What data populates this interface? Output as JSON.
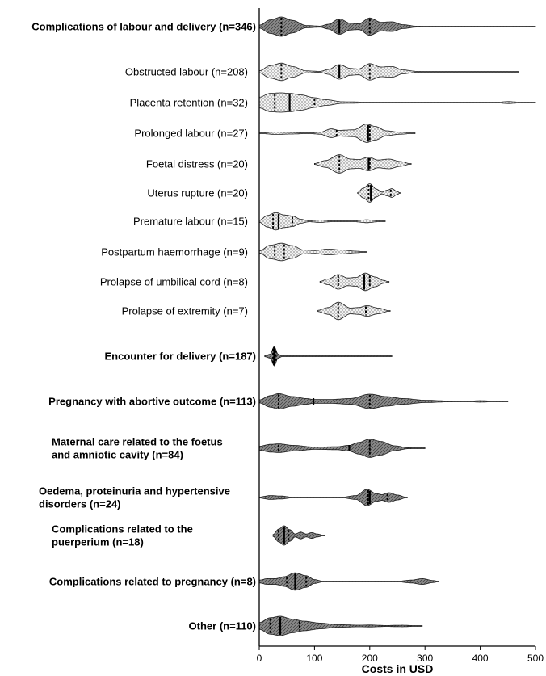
{
  "chart_data": {
    "type": "violin",
    "title": "",
    "xlabel": "Costs in USD",
    "ylabel": "",
    "xlim": [
      0,
      500
    ],
    "xticks": [
      0,
      100,
      200,
      300,
      400,
      500
    ],
    "grid": false,
    "legend": "none",
    "colors": {
      "group": "#8a8a8a",
      "subgroup": "#e6e6e6",
      "outline": "#1a1a1a",
      "marker": "#000000"
    },
    "categories": [
      {
        "label": "Complications of labour and delivery (n=346)",
        "bold": true,
        "kind": "group",
        "lines": [
          40,
          145,
          200
        ],
        "range": [
          0,
          500
        ],
        "profile": [
          [
            0,
            0.15
          ],
          [
            20,
            0.7
          ],
          [
            40,
            1.0
          ],
          [
            60,
            0.65
          ],
          [
            85,
            0.12
          ],
          [
            110,
            0.05
          ],
          [
            125,
            0.25
          ],
          [
            145,
            0.8
          ],
          [
            165,
            0.35
          ],
          [
            180,
            0.3
          ],
          [
            200,
            0.9
          ],
          [
            220,
            0.45
          ],
          [
            240,
            0.5
          ],
          [
            260,
            0.2
          ],
          [
            285,
            0.05
          ],
          [
            320,
            0.02
          ],
          [
            500,
            0.0
          ]
        ]
      },
      {
        "label": "Obstructed labour (n=208)",
        "bold": false,
        "kind": "subgroup",
        "lines": [
          40,
          145,
          200
        ],
        "range": [
          0,
          470
        ],
        "profile": [
          [
            0,
            0.1
          ],
          [
            20,
            0.65
          ],
          [
            40,
            0.9
          ],
          [
            60,
            0.55
          ],
          [
            85,
            0.1
          ],
          [
            110,
            0.05
          ],
          [
            125,
            0.25
          ],
          [
            145,
            0.75
          ],
          [
            165,
            0.35
          ],
          [
            180,
            0.3
          ],
          [
            200,
            0.85
          ],
          [
            220,
            0.5
          ],
          [
            240,
            0.55
          ],
          [
            260,
            0.2
          ],
          [
            285,
            0.05
          ],
          [
            320,
            0.02
          ],
          [
            470,
            0.0
          ]
        ]
      },
      {
        "label": "Placenta retention (n=32)",
        "bold": false,
        "kind": "subgroup",
        "lines": [
          28,
          55,
          100
        ],
        "range": [
          0,
          500
        ],
        "profile": [
          [
            0,
            0.55
          ],
          [
            20,
            0.95
          ],
          [
            40,
            1.0
          ],
          [
            55,
            0.95
          ],
          [
            75,
            0.8
          ],
          [
            100,
            0.5
          ],
          [
            120,
            0.3
          ],
          [
            150,
            0.08
          ],
          [
            200,
            0.04
          ],
          [
            250,
            0.03
          ],
          [
            300,
            0.04
          ],
          [
            330,
            0.02
          ],
          [
            400,
            0.02
          ],
          [
            430,
            0.03
          ],
          [
            450,
            0.1
          ],
          [
            475,
            0.03
          ],
          [
            500,
            0.0
          ]
        ]
      },
      {
        "label": "Prolonged labour (n=27)",
        "bold": false,
        "kind": "subgroup",
        "lines": [
          140,
          197,
          200
        ],
        "range": [
          0,
          282
        ],
        "profile": [
          [
            0,
            0.02
          ],
          [
            30,
            0.12
          ],
          [
            60,
            0.08
          ],
          [
            90,
            0.03
          ],
          [
            110,
            0.1
          ],
          [
            130,
            0.45
          ],
          [
            145,
            0.3
          ],
          [
            170,
            0.35
          ],
          [
            195,
            0.95
          ],
          [
            210,
            0.7
          ],
          [
            230,
            0.25
          ],
          [
            255,
            0.1
          ],
          [
            282,
            0.0
          ]
        ]
      },
      {
        "label": "Foetal distress (n=20)",
        "bold": false,
        "kind": "subgroup",
        "lines": [
          145,
          198,
          200
        ],
        "range": [
          100,
          275
        ],
        "profile": [
          [
            100,
            0.05
          ],
          [
            120,
            0.35
          ],
          [
            145,
            0.95
          ],
          [
            165,
            0.5
          ],
          [
            180,
            0.45
          ],
          [
            198,
            0.7
          ],
          [
            215,
            0.4
          ],
          [
            235,
            0.5
          ],
          [
            255,
            0.25
          ],
          [
            275,
            0.0
          ]
        ]
      },
      {
        "label": "Uterus rupture (n=20)",
        "bold": false,
        "kind": "subgroup",
        "lines": [
          198,
          202,
          238
        ],
        "range": [
          178,
          255
        ],
        "profile": [
          [
            178,
            0.05
          ],
          [
            188,
            0.5
          ],
          [
            200,
            0.95
          ],
          [
            212,
            0.4
          ],
          [
            222,
            0.1
          ],
          [
            232,
            0.3
          ],
          [
            240,
            0.45
          ],
          [
            250,
            0.15
          ],
          [
            255,
            0.0
          ]
        ]
      },
      {
        "label": "Premature labour (n=15)",
        "bold": false,
        "kind": "subgroup",
        "lines": [
          25,
          35,
          60
        ],
        "range": [
          0,
          228
        ],
        "profile": [
          [
            0,
            0.1
          ],
          [
            15,
            0.6
          ],
          [
            30,
            0.9
          ],
          [
            45,
            0.65
          ],
          [
            60,
            0.55
          ],
          [
            75,
            0.2
          ],
          [
            90,
            0.05
          ],
          [
            110,
            0.12
          ],
          [
            130,
            0.05
          ],
          [
            170,
            0.04
          ],
          [
            195,
            0.15
          ],
          [
            215,
            0.05
          ],
          [
            228,
            0.0
          ]
        ]
      },
      {
        "label": "Postpartum haemorrhage (n=9)",
        "bold": false,
        "kind": "subgroup",
        "lines": [
          28,
          45
        ],
        "range": [
          0,
          195
        ],
        "profile": [
          [
            0,
            0.1
          ],
          [
            20,
            0.7
          ],
          [
            40,
            0.9
          ],
          [
            60,
            0.65
          ],
          [
            80,
            0.2
          ],
          [
            100,
            0.15
          ],
          [
            125,
            0.3
          ],
          [
            150,
            0.2
          ],
          [
            175,
            0.08
          ],
          [
            195,
            0.0
          ]
        ]
      },
      {
        "label": "Prolapse of umbilical cord (n=8)",
        "bold": false,
        "kind": "subgroup",
        "lines": [
          143,
          190,
          200
        ],
        "range": [
          110,
          235
        ],
        "profile": [
          [
            110,
            0.05
          ],
          [
            125,
            0.3
          ],
          [
            143,
            0.75
          ],
          [
            160,
            0.4
          ],
          [
            175,
            0.45
          ],
          [
            192,
            0.9
          ],
          [
            210,
            0.5
          ],
          [
            225,
            0.15
          ],
          [
            235,
            0.0
          ]
        ]
      },
      {
        "label": "Prolapse of extremity (n=7)",
        "bold": false,
        "kind": "subgroup",
        "lines": [
          143,
          193
        ],
        "range": [
          105,
          237
        ],
        "profile": [
          [
            105,
            0.05
          ],
          [
            125,
            0.35
          ],
          [
            143,
            0.9
          ],
          [
            165,
            0.3
          ],
          [
            180,
            0.35
          ],
          [
            195,
            0.55
          ],
          [
            215,
            0.3
          ],
          [
            237,
            0.0
          ]
        ]
      },
      {
        "label": "Encounter for delivery (n=187)",
        "bold": true,
        "kind": "group",
        "lines": [
          25,
          27,
          30
        ],
        "range": [
          10,
          240
        ],
        "profile": [
          [
            10,
            0.05
          ],
          [
            20,
            0.2
          ],
          [
            27,
            1.0
          ],
          [
            34,
            0.2
          ],
          [
            42,
            0.03
          ],
          [
            80,
            0.02
          ],
          [
            140,
            0.03
          ],
          [
            200,
            0.02
          ],
          [
            240,
            0.0
          ]
        ]
      },
      {
        "label": "Pregnancy with abortive outcome (n=113)",
        "bold": true,
        "kind": "group",
        "lines": [
          35,
          98,
          200
        ],
        "range": [
          0,
          450
        ],
        "profile": [
          [
            0,
            0.15
          ],
          [
            20,
            0.6
          ],
          [
            35,
            0.8
          ],
          [
            60,
            0.5
          ],
          [
            85,
            0.3
          ],
          [
            98,
            0.2
          ],
          [
            130,
            0.2
          ],
          [
            165,
            0.3
          ],
          [
            200,
            0.75
          ],
          [
            230,
            0.5
          ],
          [
            260,
            0.3
          ],
          [
            300,
            0.12
          ],
          [
            340,
            0.05
          ],
          [
            380,
            0.02
          ],
          [
            400,
            0.08
          ],
          [
            425,
            0.02
          ],
          [
            450,
            0.0
          ]
        ]
      },
      {
        "label": "Maternal care related to the foetus and amniotic cavity (n=84)",
        "bold": true,
        "kind": "group",
        "lines": [
          35,
          163,
          200
        ],
        "range": [
          0,
          300
        ],
        "profile": [
          [
            0,
            0.2
          ],
          [
            20,
            0.4
          ],
          [
            35,
            0.45
          ],
          [
            60,
            0.3
          ],
          [
            100,
            0.12
          ],
          [
            140,
            0.15
          ],
          [
            163,
            0.3
          ],
          [
            180,
            0.6
          ],
          [
            200,
            0.95
          ],
          [
            220,
            0.7
          ],
          [
            245,
            0.25
          ],
          [
            270,
            0.05
          ],
          [
            300,
            0.0
          ]
        ]
      },
      {
        "label": "Oedema, proteinuria and hypertensive disorders (n=24)",
        "bold": true,
        "kind": "group",
        "lines": [
          197,
          200,
          232
        ],
        "range": [
          0,
          268
        ],
        "profile": [
          [
            0,
            0.05
          ],
          [
            20,
            0.2
          ],
          [
            40,
            0.15
          ],
          [
            60,
            0.03
          ],
          [
            150,
            0.03
          ],
          [
            175,
            0.2
          ],
          [
            195,
            0.85
          ],
          [
            212,
            0.4
          ],
          [
            222,
            0.3
          ],
          [
            235,
            0.5
          ],
          [
            250,
            0.25
          ],
          [
            268,
            0.0
          ]
        ]
      },
      {
        "label": "Complications related to the puerperium (n=18)",
        "bold": true,
        "kind": "group",
        "lines": [
          35,
          45,
          53
        ],
        "range": [
          25,
          118
        ],
        "profile": [
          [
            25,
            0.1
          ],
          [
            35,
            0.65
          ],
          [
            45,
            1.0
          ],
          [
            55,
            0.6
          ],
          [
            65,
            0.15
          ],
          [
            75,
            0.35
          ],
          [
            85,
            0.15
          ],
          [
            95,
            0.3
          ],
          [
            105,
            0.15
          ],
          [
            118,
            0.0
          ]
        ]
      },
      {
        "label": "Complications related to pregnancy (n=8)",
        "bold": true,
        "kind": "group",
        "lines": [
          50,
          65,
          85
        ],
        "range": [
          0,
          325
        ],
        "profile": [
          [
            0,
            0.15
          ],
          [
            15,
            0.3
          ],
          [
            30,
            0.3
          ],
          [
            45,
            0.5
          ],
          [
            65,
            0.9
          ],
          [
            85,
            0.6
          ],
          [
            100,
            0.2
          ],
          [
            115,
            0.04
          ],
          [
            250,
            0.02
          ],
          [
            275,
            0.15
          ],
          [
            295,
            0.3
          ],
          [
            315,
            0.1
          ],
          [
            325,
            0.0
          ]
        ]
      },
      {
        "label": "Other (n=110)",
        "bold": true,
        "kind": "group",
        "lines": [
          20,
          38,
          73
        ],
        "range": [
          0,
          295
        ],
        "profile": [
          [
            0,
            0.35
          ],
          [
            20,
            0.85
          ],
          [
            38,
            1.0
          ],
          [
            60,
            0.7
          ],
          [
            80,
            0.5
          ],
          [
            110,
            0.3
          ],
          [
            140,
            0.15
          ],
          [
            180,
            0.08
          ],
          [
            200,
            0.1
          ],
          [
            230,
            0.05
          ],
          [
            260,
            0.08
          ],
          [
            280,
            0.04
          ],
          [
            295,
            0.0
          ]
        ]
      }
    ]
  }
}
